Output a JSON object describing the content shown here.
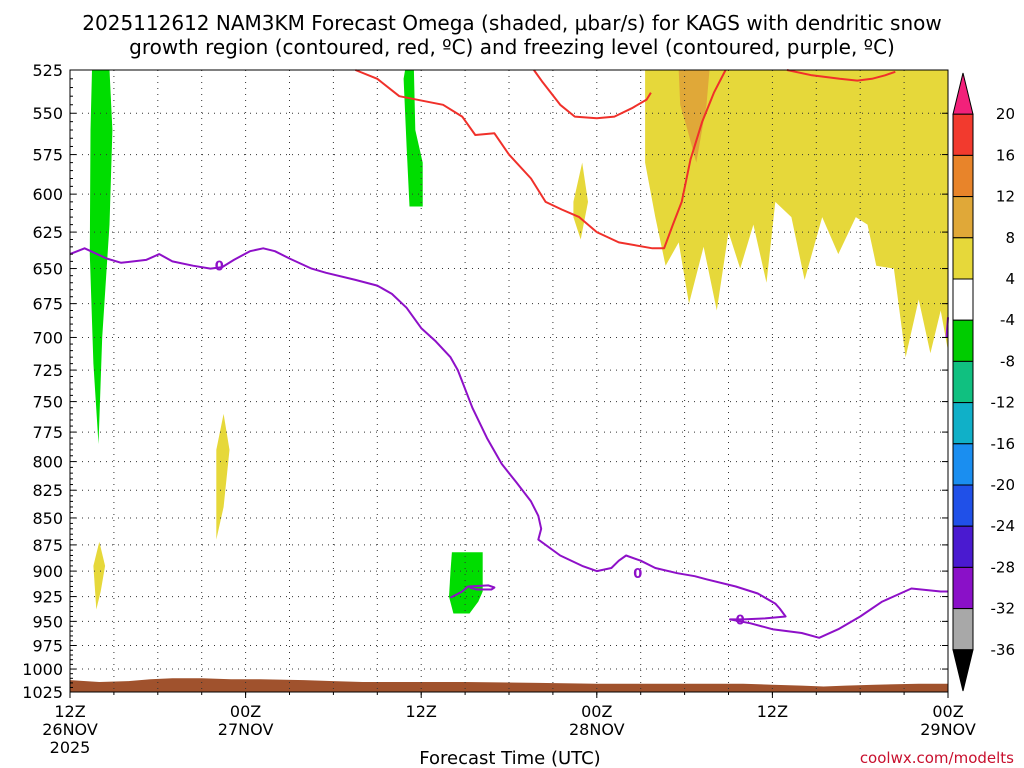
{
  "title": {
    "line1": "2025112612 NAM3KM Forecast Omega (shaded, μbar/s) for KAGS with dendritic snow",
    "line2": "growth region (contoured, red, ºC) and freezing level (contoured, purple, ºC)"
  },
  "credit": "coolwx.com/modelts",
  "xaxis_title": "Forecast Time (UTC)",
  "chart_data": {
    "type": "heatmap",
    "title": "2025112612 NAM3KM Forecast Omega (shaded, μbar/s) for KAGS with dendritic snow growth region (contoured, red, ºC) and freezing level (contoured, purple, ºC)",
    "xlabel": "Forecast Time (UTC)",
    "ylabel": "",
    "xlim_hours": [
      0,
      60
    ],
    "y_scale": "log",
    "ylim_hpa": [
      525,
      1025
    ],
    "y_ticks": [
      525,
      550,
      575,
      600,
      625,
      650,
      675,
      700,
      725,
      750,
      775,
      800,
      825,
      850,
      875,
      900,
      925,
      950,
      975,
      1000,
      1025
    ],
    "x_ticks": [
      {
        "hour": 0,
        "label": [
          "12Z",
          "26NOV",
          "2025"
        ]
      },
      {
        "hour": 12,
        "label": [
          "00Z",
          "27NOV"
        ]
      },
      {
        "hour": 24,
        "label": [
          "12Z"
        ]
      },
      {
        "hour": 36,
        "label": [
          "00Z",
          "28NOV"
        ]
      },
      {
        "hour": 48,
        "label": [
          "12Z"
        ]
      },
      {
        "hour": 60,
        "label": [
          "00Z",
          "29NOV"
        ]
      }
    ],
    "grid": true,
    "colorbar": {
      "boundaries": [
        -36,
        -32,
        -28,
        -24,
        -20,
        -16,
        -12,
        -8,
        -4,
        4,
        8,
        12,
        16,
        20
      ],
      "labels": [
        "20",
        "16",
        "12",
        "8",
        "4",
        "-4",
        "-8",
        "-12",
        "-16",
        "-20",
        "-24",
        "-28",
        "-32",
        "-36"
      ],
      "colors_top_to_bottom": [
        "#f2217a",
        "#f23a2e",
        "#e8842a",
        "#e0a838",
        "#e6d83a",
        "#ffffff",
        "#00cc00",
        "#10c080",
        "#10b0c8",
        "#1a8ef0",
        "#2050e8",
        "#4a1ad0",
        "#8a10c8",
        "#a8a8a8",
        "#000000"
      ]
    },
    "omega_regions": [
      {
        "color": "#00dd00",
        "points": [
          [
            1.5,
            525
          ],
          [
            2.7,
            525
          ],
          [
            2.9,
            560
          ],
          [
            2.7,
            620
          ],
          [
            2.2,
            700
          ],
          [
            1.95,
            785
          ],
          [
            1.6,
            720
          ],
          [
            1.35,
            640
          ],
          [
            1.4,
            560
          ]
        ]
      },
      {
        "color": "#00dd00",
        "points": [
          [
            22.9,
            525
          ],
          [
            23.5,
            525
          ],
          [
            23.6,
            560
          ],
          [
            24.1,
            580
          ],
          [
            24.1,
            608
          ],
          [
            23.2,
            608
          ],
          [
            23.0,
            570
          ],
          [
            22.8,
            530
          ]
        ]
      },
      {
        "color": "#00dd00",
        "points": [
          [
            26.1,
            882
          ],
          [
            28.2,
            882
          ],
          [
            28.2,
            920
          ],
          [
            27.9,
            930
          ],
          [
            27.3,
            942
          ],
          [
            26.2,
            942
          ],
          [
            25.9,
            925
          ],
          [
            26.0,
            900
          ]
        ]
      },
      {
        "color": "#e6d83a",
        "points": [
          [
            10.0,
            790
          ],
          [
            10.5,
            760
          ],
          [
            10.9,
            790
          ],
          [
            10.5,
            840
          ],
          [
            10.0,
            870
          ]
        ]
      },
      {
        "color": "#e6d83a",
        "points": [
          [
            1.6,
            895
          ],
          [
            2.0,
            872
          ],
          [
            2.4,
            895
          ],
          [
            2.1,
            920
          ],
          [
            1.8,
            938
          ]
        ]
      },
      {
        "color": "#e6d83a",
        "points": [
          [
            34.4,
            605
          ],
          [
            35.0,
            580
          ],
          [
            35.4,
            605
          ],
          [
            34.9,
            630
          ],
          [
            34.4,
            615
          ]
        ]
      },
      {
        "color": "#e6d83a",
        "points": [
          [
            39.3,
            525
          ],
          [
            60,
            525
          ],
          [
            60,
            710
          ],
          [
            59.5,
            680
          ],
          [
            58.8,
            712
          ],
          [
            58.0,
            672
          ],
          [
            57.1,
            715
          ],
          [
            56.3,
            650
          ],
          [
            55.1,
            648
          ],
          [
            54.5,
            620
          ],
          [
            53.7,
            615
          ],
          [
            52.5,
            640
          ],
          [
            51.4,
            615
          ],
          [
            50.2,
            658
          ],
          [
            49.3,
            615
          ],
          [
            48.2,
            605
          ],
          [
            47.6,
            660
          ],
          [
            46.7,
            620
          ],
          [
            45.8,
            650
          ],
          [
            45.0,
            625
          ],
          [
            44.2,
            680
          ],
          [
            43.3,
            635
          ],
          [
            42.3,
            675
          ],
          [
            41.6,
            632
          ],
          [
            40.7,
            648
          ],
          [
            40.0,
            615
          ],
          [
            39.3,
            580
          ]
        ]
      },
      {
        "color": "#e0a838",
        "points": [
          [
            41.6,
            525
          ],
          [
            43.7,
            525
          ],
          [
            43.5,
            545
          ],
          [
            42.8,
            580
          ],
          [
            42.2,
            560
          ],
          [
            41.7,
            545
          ]
        ]
      }
    ],
    "dendritic_snow_contour_red": [
      [
        [
          19.5,
          525
        ],
        [
          21.0,
          530
        ],
        [
          22.5,
          540
        ],
        [
          25.5,
          545
        ],
        [
          26.8,
          552
        ],
        [
          27.7,
          563
        ],
        [
          29.0,
          562
        ],
        [
          30.0,
          575
        ],
        [
          31.5,
          590
        ],
        [
          32.5,
          605
        ],
        [
          33.6,
          610
        ],
        [
          34.8,
          615
        ],
        [
          36.0,
          625
        ],
        [
          37.5,
          632
        ],
        [
          39.8,
          636
        ],
        [
          40.6,
          636
        ],
        [
          41.2,
          620
        ],
        [
          41.8,
          605
        ],
        [
          42.4,
          578
        ],
        [
          43.2,
          555
        ],
        [
          44.0,
          538
        ],
        [
          44.8,
          525
        ]
      ],
      [
        [
          31.7,
          525
        ],
        [
          32.3,
          532
        ],
        [
          33.5,
          545
        ],
        [
          34.5,
          552
        ],
        [
          36.0,
          553
        ],
        [
          37.2,
          552
        ],
        [
          38.4,
          547
        ],
        [
          39.4,
          542
        ],
        [
          39.7,
          538
        ]
      ],
      [
        [
          49.0,
          525
        ],
        [
          50.7,
          528
        ],
        [
          52.6,
          530
        ],
        [
          53.8,
          531
        ],
        [
          54.8,
          530
        ],
        [
          55.7,
          528
        ],
        [
          56.4,
          526
        ]
      ]
    ],
    "freezing_level_contour_purple": [
      [
        [
          0,
          640
        ],
        [
          1.0,
          636
        ],
        [
          2.5,
          643
        ],
        [
          3.5,
          646
        ],
        [
          5.2,
          644
        ],
        [
          6.1,
          640
        ],
        [
          7.0,
          645
        ],
        [
          8.4,
          648
        ],
        [
          9.6,
          650
        ],
        [
          10.4,
          649
        ],
        [
          11.2,
          644
        ],
        [
          12.3,
          638
        ],
        [
          13.2,
          636
        ],
        [
          14.0,
          638
        ],
        [
          15.0,
          643
        ],
        [
          16.5,
          650
        ],
        [
          17.5,
          653
        ],
        [
          19.5,
          658
        ],
        [
          21.0,
          662
        ],
        [
          22.0,
          668
        ],
        [
          23.0,
          678
        ],
        [
          24.0,
          693
        ],
        [
          25.0,
          703
        ],
        [
          26.0,
          715
        ],
        [
          26.5,
          725
        ],
        [
          27.5,
          755
        ],
        [
          28.5,
          780
        ],
        [
          29.5,
          802
        ],
        [
          30.5,
          818
        ],
        [
          31.5,
          835
        ],
        [
          32.0,
          848
        ],
        [
          32.2,
          860
        ],
        [
          32.0,
          870
        ],
        [
          33.5,
          885
        ],
        [
          35.0,
          895
        ],
        [
          36.0,
          900
        ],
        [
          37.0,
          897
        ],
        [
          37.5,
          890
        ],
        [
          38.0,
          885
        ],
        [
          39.0,
          890
        ],
        [
          40.0,
          897
        ],
        [
          41.5,
          902
        ],
        [
          42.7,
          905
        ],
        [
          43.5,
          908
        ],
        [
          45.5,
          915
        ],
        [
          47.0,
          922
        ],
        [
          48.2,
          932
        ],
        [
          48.5,
          937
        ],
        [
          48.9,
          945
        ],
        [
          47.5,
          947
        ],
        [
          46.0,
          948
        ],
        [
          45.1,
          948
        ],
        [
          46.5,
          952
        ],
        [
          48.0,
          958
        ],
        [
          50.0,
          962
        ],
        [
          51.2,
          967
        ],
        [
          52.5,
          958
        ],
        [
          54.0,
          945
        ],
        [
          55.5,
          930
        ],
        [
          57.5,
          917
        ],
        [
          59.5,
          920
        ],
        [
          60,
          920
        ]
      ],
      [
        [
          26.0,
          926
        ],
        [
          26.8,
          920
        ],
        [
          27.2,
          915
        ],
        [
          28.6,
          914
        ],
        [
          29.0,
          916
        ],
        [
          28.8,
          918
        ],
        [
          27.8,
          918
        ],
        [
          27.3,
          916
        ]
      ],
      [
        [
          59.9,
          700
        ],
        [
          60,
          685
        ]
      ]
    ],
    "contour_labels": [
      {
        "x": 10.2,
        "y": 648,
        "text": "0",
        "color": "#8e10c8"
      },
      {
        "x": 38.8,
        "y": 902,
        "text": "0",
        "color": "#8e10c8"
      },
      {
        "x": 45.8,
        "y": 948,
        "text": "0",
        "color": "#8e10c8"
      }
    ],
    "terrain": {
      "color": "#a0522d",
      "top_hpa": [
        [
          0,
          1012
        ],
        [
          2,
          1014
        ],
        [
          4,
          1013
        ],
        [
          5.5,
          1011
        ],
        [
          7,
          1010
        ],
        [
          9,
          1010
        ],
        [
          11,
          1011
        ],
        [
          13,
          1011
        ],
        [
          16,
          1012
        ],
        [
          18,
          1013
        ],
        [
          20,
          1014
        ],
        [
          23,
          1014
        ],
        [
          27,
          1014
        ],
        [
          32,
          1015
        ],
        [
          36,
          1016
        ],
        [
          40,
          1016
        ],
        [
          46,
          1016
        ],
        [
          48,
          1017
        ],
        [
          50,
          1018
        ],
        [
          51.5,
          1019
        ],
        [
          53,
          1018
        ],
        [
          55,
          1017
        ],
        [
          58,
          1016
        ],
        [
          60,
          1016
        ]
      ],
      "bottom_hpa": 1025
    }
  }
}
